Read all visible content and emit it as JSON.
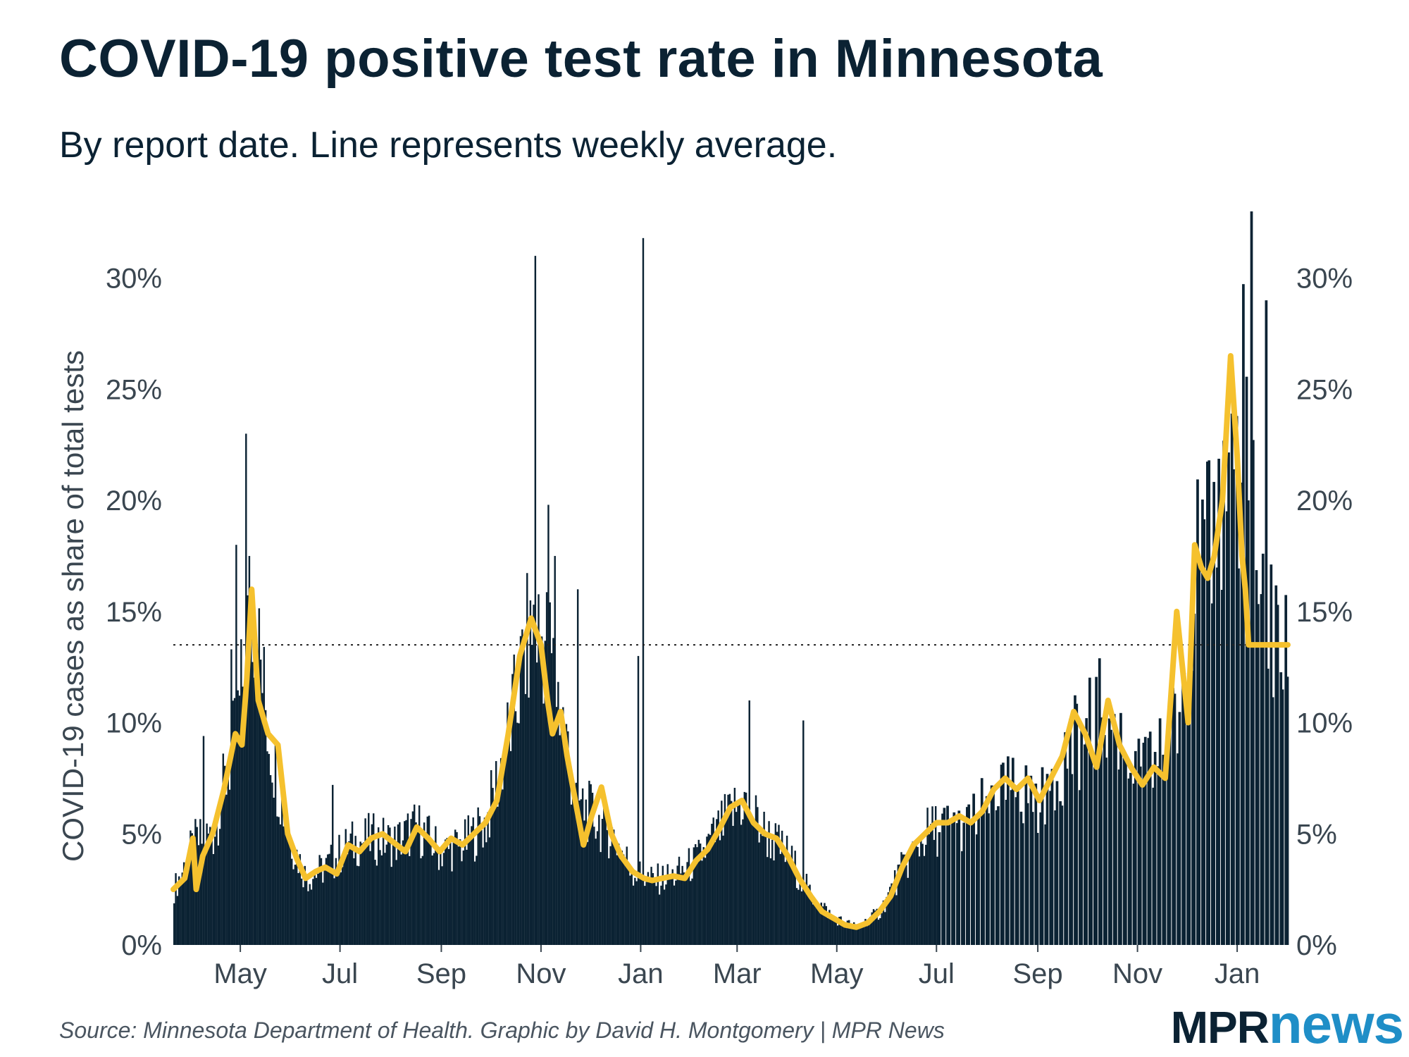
{
  "title": "COVID-19 positive test rate in Minnesota",
  "subtitle": "By report date. Line represents weekly average.",
  "source": "Source: Minnesota Department of Health. Graphic by David H. Montgomery | MPR News",
  "logo": {
    "part1": "MPR",
    "part2": "news"
  },
  "colors": {
    "bars": "#0b2233",
    "line": "#f5c12e",
    "text": "#0b2233",
    "logo_accent": "#1f8ec7"
  },
  "chart_data": {
    "type": "bar",
    "title": "COVID-19 positive test rate in Minnesota",
    "subtitle": "By report date. Line represents weekly average.",
    "ylabel": "COVID-19 cases as share of total tests",
    "xlabel": "",
    "ylim": [
      0,
      33
    ],
    "y_ticks": [
      0,
      5,
      10,
      15,
      20,
      25,
      30
    ],
    "y_tick_labels": [
      "0%",
      "5%",
      "10%",
      "15%",
      "20%",
      "25%",
      "30%"
    ],
    "x_start": "2020-03-21",
    "x_end": "2022-02-01",
    "x_ticks": [
      "2020-05-01",
      "2020-07-01",
      "2020-09-01",
      "2020-11-01",
      "2021-01-01",
      "2021-03-01",
      "2021-05-01",
      "2021-07-01",
      "2021-09-01",
      "2021-11-01",
      "2022-01-01"
    ],
    "x_tick_labels": [
      "May",
      "Jul",
      "Sep",
      "Nov",
      "Jan",
      "Mar",
      "May",
      "Jul",
      "Sep",
      "Nov",
      "Jan"
    ],
    "reference_line": 13.5,
    "grid": false,
    "series": [
      {
        "type": "line",
        "dates": [
          "2020-03-21",
          "2020-03-28",
          "2020-04-02",
          "2020-04-04",
          "2020-04-08",
          "2020-04-14",
          "2020-04-21",
          "2020-04-28",
          "2020-05-02",
          "2020-05-05",
          "2020-05-08",
          "2020-05-12",
          "2020-05-18",
          "2020-05-24",
          "2020-05-30",
          "2020-06-05",
          "2020-06-10",
          "2020-06-16",
          "2020-06-22",
          "2020-06-29",
          "2020-07-06",
          "2020-07-13",
          "2020-07-20",
          "2020-07-27",
          "2020-08-03",
          "2020-08-10",
          "2020-08-17",
          "2020-08-24",
          "2020-08-31",
          "2020-09-07",
          "2020-09-14",
          "2020-09-21",
          "2020-09-28",
          "2020-10-05",
          "2020-10-12",
          "2020-10-19",
          "2020-10-26",
          "2020-11-01",
          "2020-11-05",
          "2020-11-08",
          "2020-11-13",
          "2020-11-17",
          "2020-11-22",
          "2020-11-27",
          "2020-12-02",
          "2020-12-08",
          "2020-12-14",
          "2020-12-20",
          "2020-12-27",
          "2021-01-03",
          "2021-01-08",
          "2021-01-14",
          "2021-01-21",
          "2021-01-28",
          "2021-02-04",
          "2021-02-11",
          "2021-02-18",
          "2021-02-25",
          "2021-03-04",
          "2021-03-11",
          "2021-03-18",
          "2021-03-25",
          "2021-04-01",
          "2021-04-08",
          "2021-04-15",
          "2021-04-22",
          "2021-04-29",
          "2021-05-06",
          "2021-05-13",
          "2021-05-20",
          "2021-05-27",
          "2021-06-03",
          "2021-06-10",
          "2021-06-17",
          "2021-06-24",
          "2021-07-01",
          "2021-07-08",
          "2021-07-15",
          "2021-07-22",
          "2021-07-29",
          "2021-08-05",
          "2021-08-12",
          "2021-08-19",
          "2021-08-26",
          "2021-09-02",
          "2021-09-09",
          "2021-09-16",
          "2021-09-23",
          "2021-09-30",
          "2021-10-07",
          "2021-10-14",
          "2021-10-21",
          "2021-10-28",
          "2021-11-04",
          "2021-11-11",
          "2021-11-18",
          "2021-11-25",
          "2021-12-02",
          "2021-12-06",
          "2021-12-10",
          "2021-12-14",
          "2021-12-18",
          "2021-12-23",
          "2021-12-28",
          "2022-01-01",
          "2022-01-04",
          "2022-01-06",
          "2022-01-08",
          "2022-01-10",
          "2022-01-13",
          "2022-01-16",
          "2022-01-18",
          "2022-01-21",
          "2022-01-24",
          "2022-01-27",
          "2022-01-29",
          "2022-02-01"
        ],
        "values": [
          2.5,
          3.0,
          4.8,
          2.5,
          4.0,
          5.0,
          7.0,
          9.5,
          9.0,
          12.0,
          16.0,
          11.0,
          9.5,
          9.0,
          5.0,
          3.8,
          3.0,
          3.3,
          3.5,
          3.2,
          4.5,
          4.2,
          4.8,
          5.0,
          4.6,
          4.2,
          5.3,
          4.8,
          4.2,
          4.8,
          4.5,
          5.0,
          5.5,
          6.5,
          9.5,
          13.0,
          14.7,
          13.5,
          11.0,
          9.5,
          10.5,
          8.5,
          6.5,
          4.5,
          5.8,
          7.1,
          5.0,
          4.0,
          3.3,
          3.0,
          2.9,
          3.0,
          3.1,
          3.0,
          3.8,
          4.3,
          5.2,
          6.2,
          6.5,
          5.5,
          5.0,
          4.8,
          4.0,
          3.0,
          2.2,
          1.5,
          1.2,
          0.9,
          0.8,
          1.0,
          1.5,
          2.2,
          3.5,
          4.5,
          5.0,
          5.5,
          5.5,
          5.8,
          5.5,
          6.0,
          7.0,
          7.5,
          7.0,
          7.5,
          6.5,
          7.5,
          8.5,
          10.5,
          9.5,
          8.0,
          11.0,
          9.0,
          8.0,
          7.2,
          8.0,
          7.5,
          15.0,
          10.0,
          18.0,
          17.0,
          16.5,
          17.5,
          20.0,
          26.5,
          22.0,
          17.5,
          16.0,
          13.5,
          13.5,
          13.5,
          13.5,
          13.5,
          13.5,
          13.5,
          13.5,
          13.5,
          13.5
        ],
        "note": ""
      }
    ]
  },
  "daily_bars": {
    "anchor_dates": [
      "2020-03-21",
      "2020-04-02",
      "2020-04-14",
      "2020-04-28",
      "2020-05-08",
      "2020-05-18",
      "2020-05-30",
      "2020-06-10",
      "2020-06-22",
      "2020-07-06",
      "2020-07-20",
      "2020-08-03",
      "2020-08-17",
      "2020-08-31",
      "2020-09-14",
      "2020-09-28",
      "2020-10-12",
      "2020-10-26",
      "2020-11-05",
      "2020-11-13",
      "2020-11-22",
      "2020-12-02",
      "2020-12-14",
      "2020-12-27",
      "2021-01-08",
      "2021-01-21",
      "2021-02-04",
      "2021-02-18",
      "2021-03-04",
      "2021-03-18",
      "2021-04-01",
      "2021-04-15",
      "2021-04-29",
      "2021-05-13",
      "2021-05-27",
      "2021-06-10",
      "2021-06-24",
      "2021-07-08",
      "2021-07-22",
      "2021-08-05",
      "2021-08-19",
      "2021-09-02",
      "2021-09-16",
      "2021-09-30",
      "2021-10-14",
      "2021-10-28",
      "2021-11-11",
      "2021-11-25",
      "2021-12-06",
      "2021-12-14",
      "2021-12-23",
      "2022-01-01",
      "2022-01-06",
      "2022-01-10",
      "2022-01-16",
      "2022-01-21",
      "2022-01-27",
      "2022-02-01"
    ],
    "anchor_values": [
      2.5,
      4.5,
      5.0,
      9.5,
      15.5,
      9.5,
      5.0,
      3.0,
      3.5,
      4.5,
      4.8,
      4.6,
      5.3,
      4.2,
      4.5,
      5.5,
      9.5,
      14.5,
      13.5,
      10.5,
      6.5,
      5.8,
      5.0,
      3.3,
      2.9,
      3.1,
      3.8,
      5.2,
      6.5,
      5.0,
      4.0,
      2.2,
      1.2,
      0.8,
      1.5,
      3.5,
      5.0,
      5.5,
      5.5,
      7.0,
      7.0,
      6.5,
      8.5,
      9.5,
      11.0,
      8.0,
      8.0,
      10.0,
      17.0,
      17.5,
      20.0,
      22.0,
      26.0,
      20.0,
      17.0,
      14.0,
      13.0,
      12.5
    ],
    "spikes": [
      {
        "date": "2020-04-08",
        "value": 9.4
      },
      {
        "date": "2020-04-25",
        "value": 13.3
      },
      {
        "date": "2020-04-28",
        "value": 18.0
      },
      {
        "date": "2020-05-04",
        "value": 23.0
      },
      {
        "date": "2020-05-06",
        "value": 17.5
      },
      {
        "date": "2020-06-26",
        "value": 7.2
      },
      {
        "date": "2020-10-25",
        "value": 15.5
      },
      {
        "date": "2020-10-28",
        "value": 31.0
      },
      {
        "date": "2020-11-05",
        "value": 19.8
      },
      {
        "date": "2020-11-09",
        "value": 17.5
      },
      {
        "date": "2020-11-23",
        "value": 16.0
      },
      {
        "date": "2020-12-30",
        "value": 13.0
      },
      {
        "date": "2021-01-02",
        "value": 31.8
      },
      {
        "date": "2021-03-08",
        "value": 11.0
      },
      {
        "date": "2021-04-10",
        "value": 10.1
      },
      {
        "date": "2021-11-15",
        "value": 13.0
      },
      {
        "date": "2021-12-08",
        "value": 17.3
      },
      {
        "date": "2022-01-03",
        "value": 20.8
      },
      {
        "date": "2022-01-07",
        "value": 20.0
      },
      {
        "date": "2022-01-09",
        "value": 33.0
      },
      {
        "date": "2022-01-18",
        "value": 29.0
      }
    ]
  }
}
